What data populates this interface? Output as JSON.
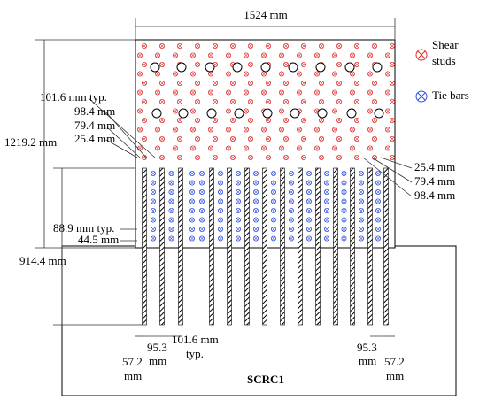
{
  "dimensions": {
    "top_width": "1524 mm",
    "plate_height": "1219.2 mm",
    "embed_depth": "914.4 mm",
    "left_labels": [
      "101.6 mm typ.",
      "98.4 mm",
      "79.4 mm",
      "25.4 mm"
    ],
    "lower_left_labels": [
      "88.9 mm typ.",
      "44.5 mm"
    ],
    "right_labels": [
      "25.4 mm",
      "79.4 mm",
      "98.4 mm"
    ],
    "bottom_labels": [
      [
        "57.2",
        "mm"
      ],
      [
        "95.3",
        "mm"
      ],
      [
        "101.6 mm",
        "typ."
      ],
      [
        "95.3",
        "mm"
      ],
      [
        "57.2",
        "mm"
      ]
    ]
  },
  "legend": [
    {
      "label_lines": [
        "Shear",
        "studs"
      ]
    },
    {
      "label_lines": [
        "Tie bars"
      ]
    }
  ],
  "specimen": "SCRC1"
}
